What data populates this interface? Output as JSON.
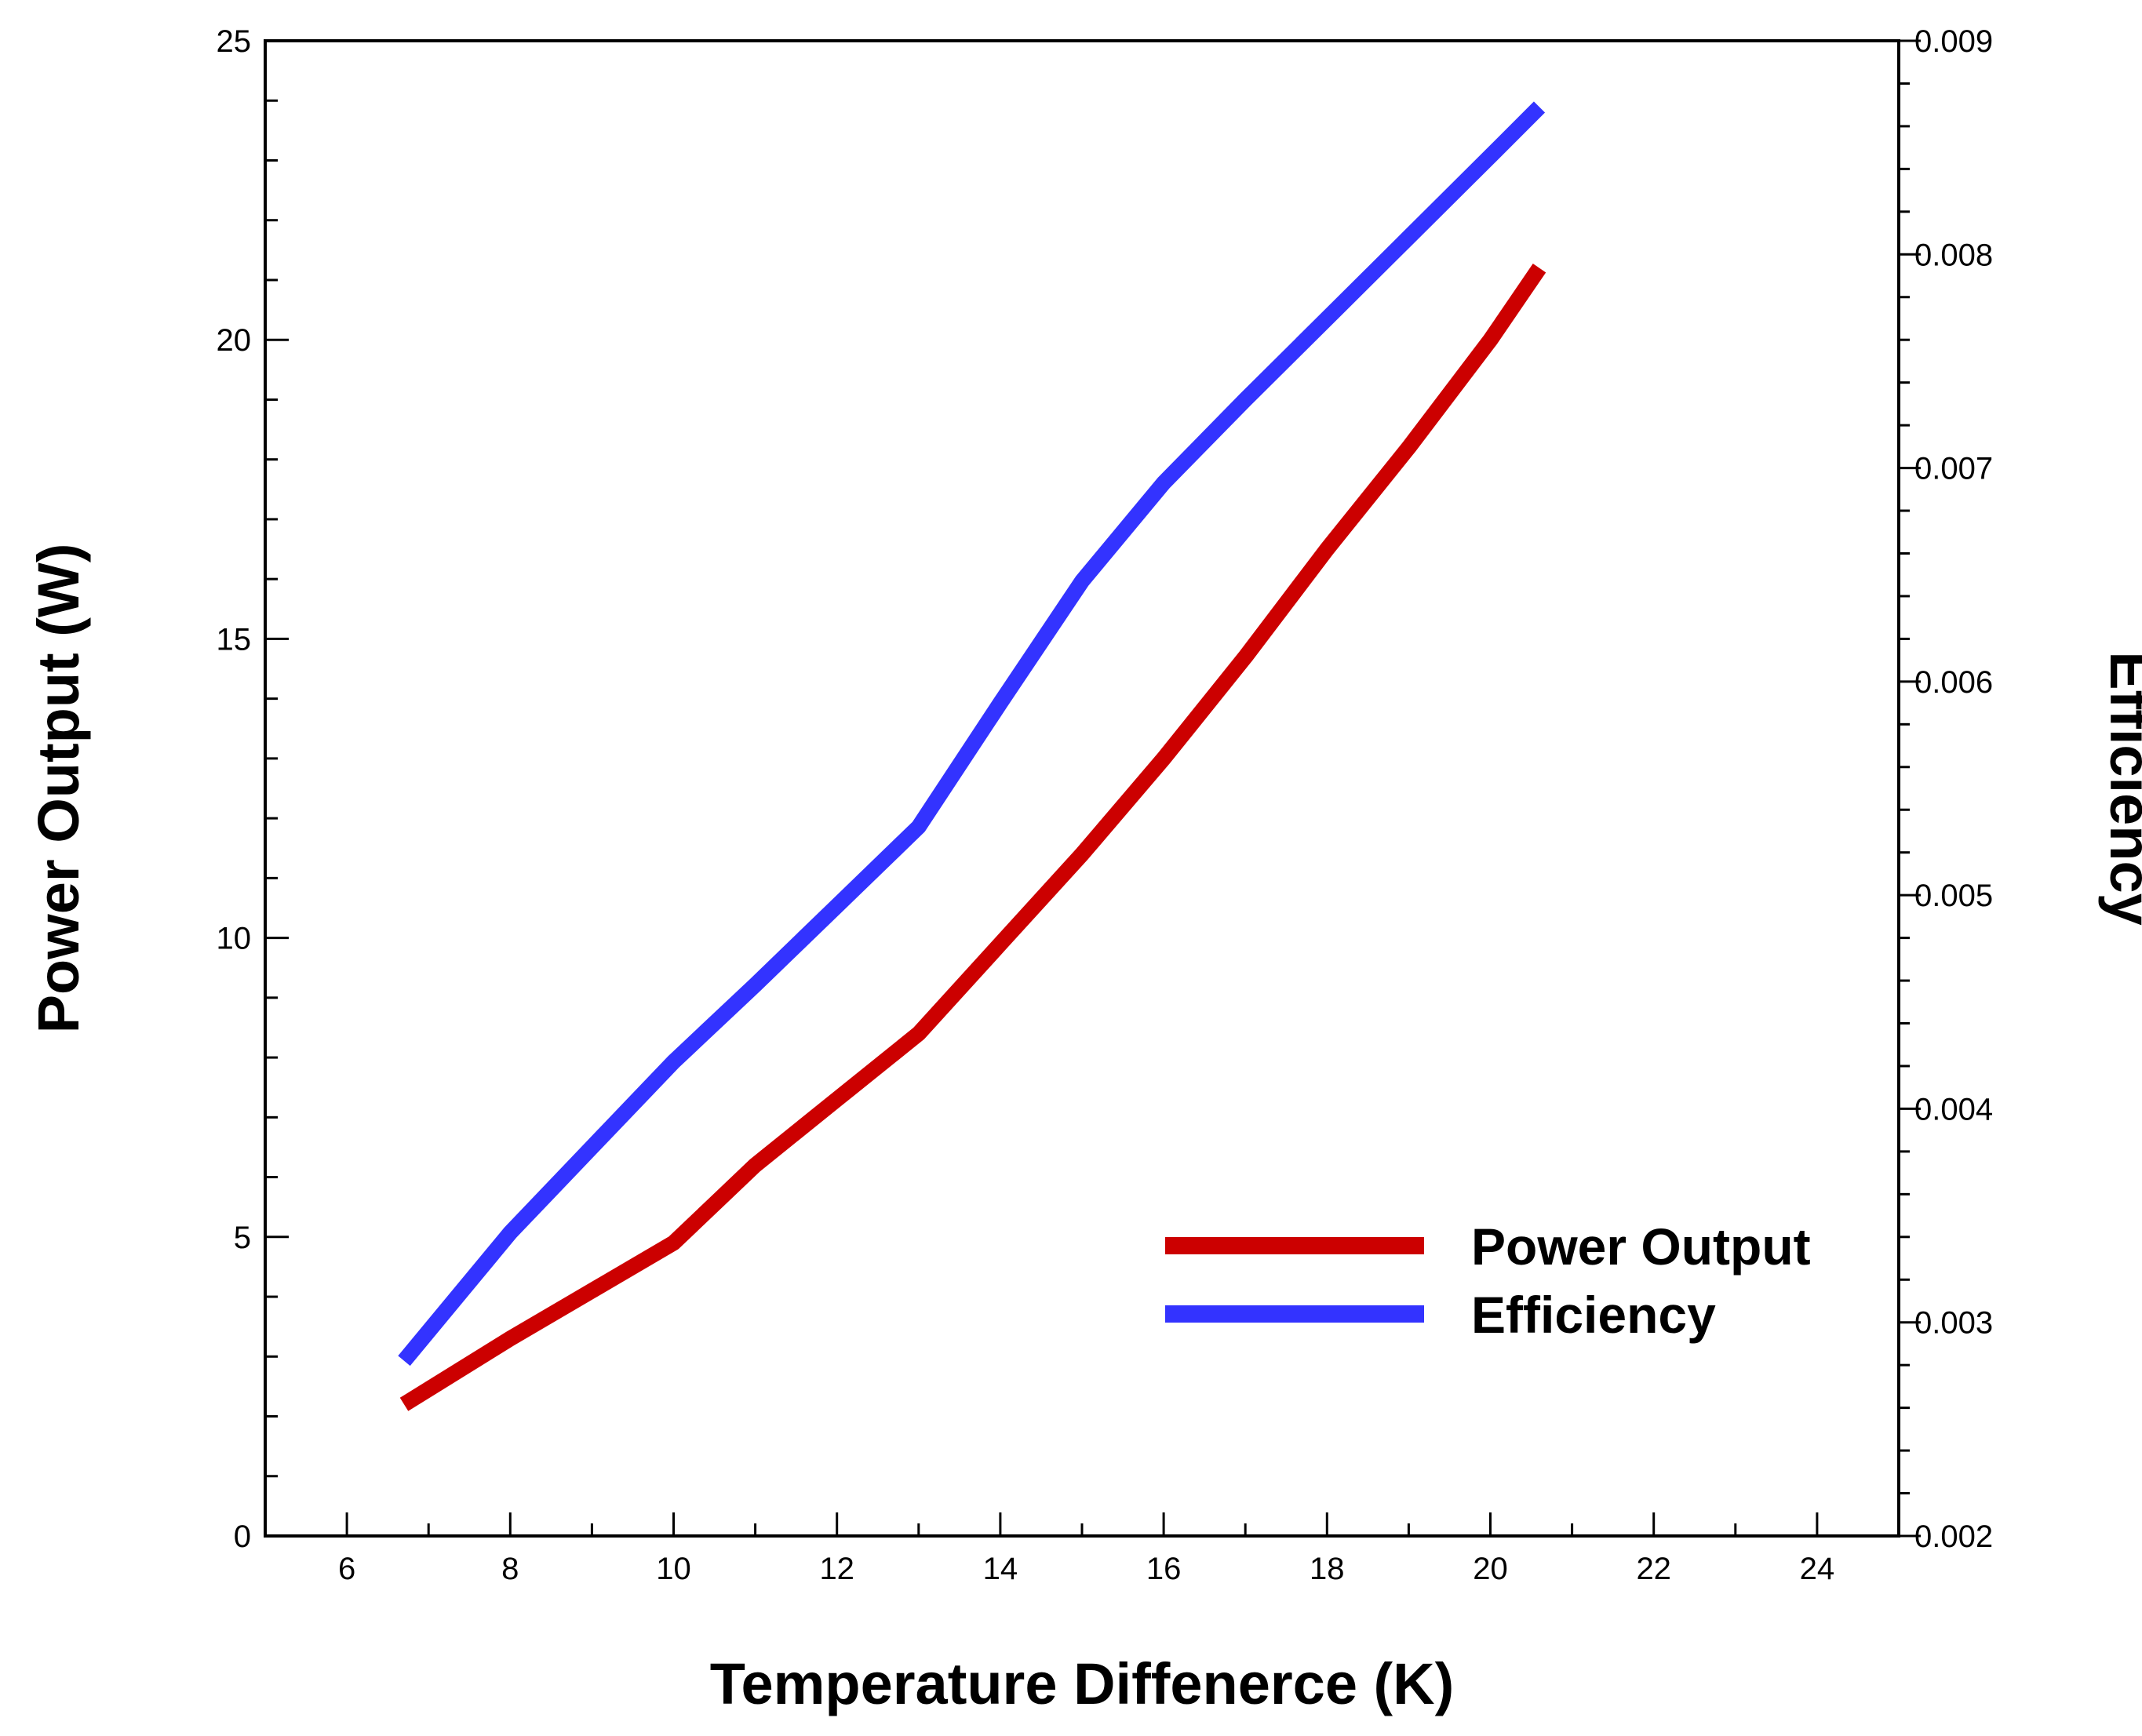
{
  "chart_data": {
    "type": "line",
    "xlabel": "Temperature Diffenerce (K)",
    "ylabel_left": "Power Output (W)",
    "ylabel_right": "Efficiency",
    "xlim": [
      5,
      25
    ],
    "ylim_left": [
      0,
      25
    ],
    "ylim_right": [
      0.002,
      0.009
    ],
    "x_ticks": [
      "6",
      "8",
      "10",
      "12",
      "14",
      "16",
      "18",
      "20",
      "22",
      "24"
    ],
    "y_left_ticks": [
      "0",
      "5",
      "10",
      "15",
      "20",
      "25"
    ],
    "y_right_ticks": [
      "0.002",
      "0.003",
      "0.004",
      "0.005",
      "0.006",
      "0.007",
      "0.008",
      "0.009"
    ],
    "series": [
      {
        "name": "Power Output",
        "axis": "left",
        "color": "#cc0000",
        "x": [
          6.7,
          8,
          9,
          10,
          11,
          12,
          13,
          14,
          15,
          16,
          17,
          18,
          19,
          20,
          20.6
        ],
        "y": [
          2.2,
          3.3,
          4.1,
          4.9,
          6.2,
          7.3,
          8.4,
          9.9,
          11.4,
          13.0,
          14.7,
          16.5,
          18.2,
          20.0,
          21.2
        ]
      },
      {
        "name": "Efficiency",
        "axis": "right",
        "color": "#3333ff",
        "x": [
          6.7,
          8,
          9,
          10,
          11,
          12,
          13,
          14,
          15,
          16,
          17,
          18,
          19,
          20,
          20.6
        ],
        "y": [
          0.00282,
          0.00342,
          0.00382,
          0.00422,
          0.00458,
          0.00495,
          0.00532,
          0.0059,
          0.00647,
          0.00693,
          0.00732,
          0.0077,
          0.00808,
          0.00846,
          0.00869
        ]
      }
    ],
    "legend_position": "bottom-right"
  }
}
